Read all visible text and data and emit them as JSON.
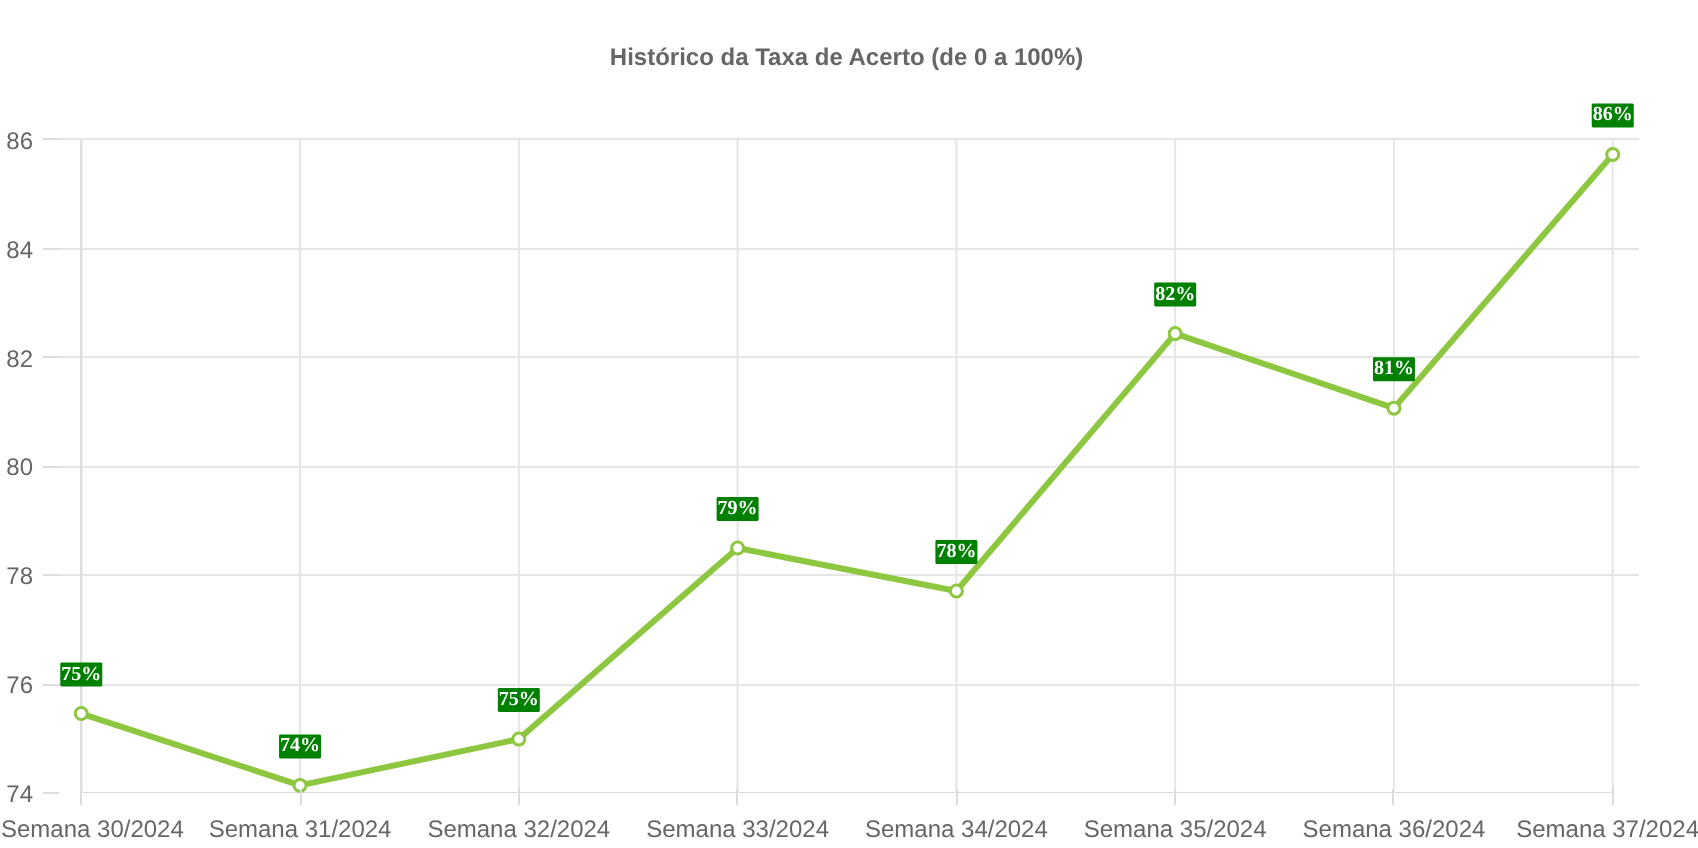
{
  "chart_data": {
    "type": "line",
    "title": "Histórico da Taxa de Acerto (de 0 a 100%)",
    "categories": [
      "Semana 30/2024",
      "Semana 31/2024",
      "Semana 32/2024",
      "Semana 33/2024",
      "Semana 34/2024",
      "Semana 35/2024",
      "Semana 36/2024",
      "Semana 37/2024"
    ],
    "series": [
      {
        "color": "#8dc63f",
        "values": [
          75.46,
          74.14,
          74.99,
          78.5,
          77.71,
          82.44,
          81.07,
          85.73
        ],
        "value_labels": [
          "75%",
          "74%",
          "75%",
          "79%",
          "78%",
          "82%",
          "81%",
          "86%"
        ]
      }
    ],
    "ylim": [
      74,
      86
    ],
    "yticks": [
      74,
      76,
      78,
      80,
      82,
      84,
      86
    ],
    "grid": true,
    "marker": "circle",
    "line_style": "solid"
  }
}
